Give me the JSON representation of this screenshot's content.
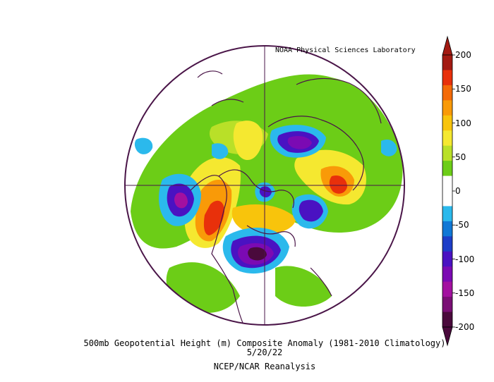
{
  "credit": "NOAA Physical Sciences Laboratory",
  "title_line1": "500mb Geopotential Height (m) Composite Anomaly (1981-2010 Climatology)",
  "date": "5/20/22",
  "source": "NCEP/NCAR Reanalysis",
  "colorbar": {
    "labels": [
      "200",
      "150",
      "100",
      "50",
      "0",
      "-50",
      "-100",
      "-150",
      "-200"
    ],
    "colors": [
      "#a31a12",
      "#e8300b",
      "#f46a08",
      "#f99a08",
      "#f8c40c",
      "#f5e830",
      "#b9e028",
      "#6ccd17",
      "#ffffff",
      "#ffffff",
      "#2bb9ec",
      "#1078d6",
      "#1d3ec8",
      "#4a12c2",
      "#7b0ab3",
      "#a310a0",
      "#7a0f75",
      "#4a0a3c"
    ]
  },
  "colors": {
    "outline": "#4a1548",
    "gridline": "#4a1548"
  }
}
